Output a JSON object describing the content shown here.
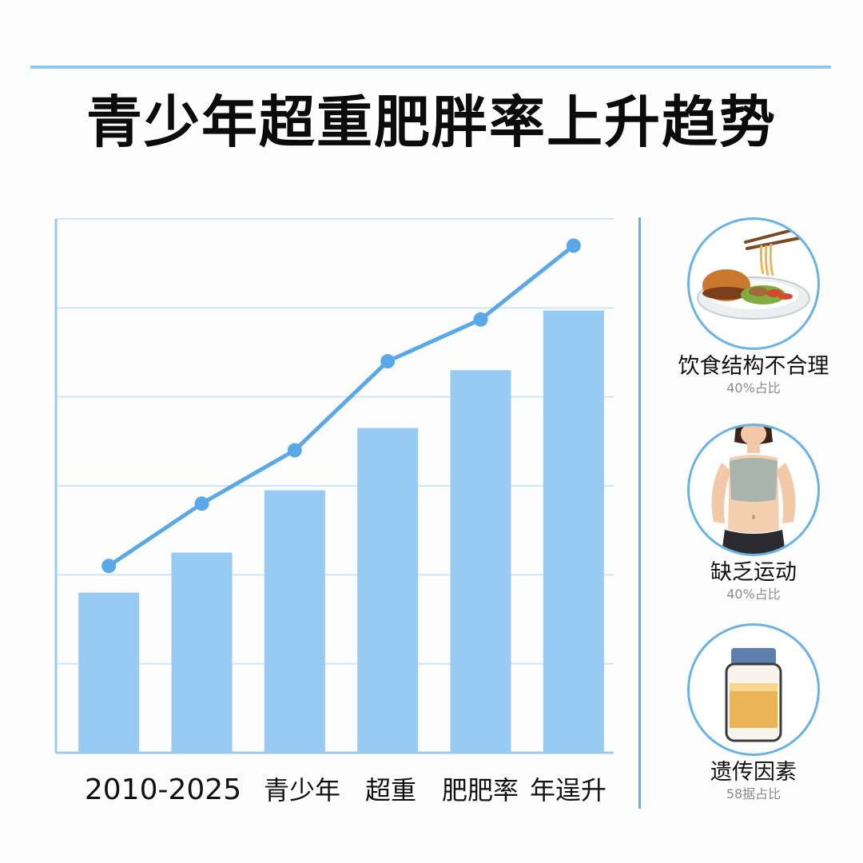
{
  "title": "青少年超重肥胖率上升趋势",
  "chart_data": {
    "type": "bar",
    "categories": [
      "2010-2025",
      "青少年",
      "超重",
      "肥肥率",
      "年逞升"
    ],
    "bars": [
      1.8,
      2.25,
      2.95,
      3.65,
      4.3,
      4.97
    ],
    "line": [
      2.1,
      2.8,
      3.4,
      4.4,
      4.87,
      5.7
    ],
    "ylim": [
      0,
      6
    ],
    "grid": true,
    "colors": {
      "bar": "#97cbf4",
      "line": "#5aa8e8",
      "grid": "#cfe6f8",
      "axis": "#9cc9ee"
    }
  },
  "sidebar": {
    "items": [
      {
        "label": "饮食结构不合理",
        "sub": "40%占比",
        "icon": "food-plate-icon"
      },
      {
        "label": "缺乏运动",
        "sub": "40%占比",
        "icon": "person-torso-icon"
      },
      {
        "label": "遗传因素",
        "sub": "58据占比",
        "icon": "jar-icon"
      }
    ]
  }
}
